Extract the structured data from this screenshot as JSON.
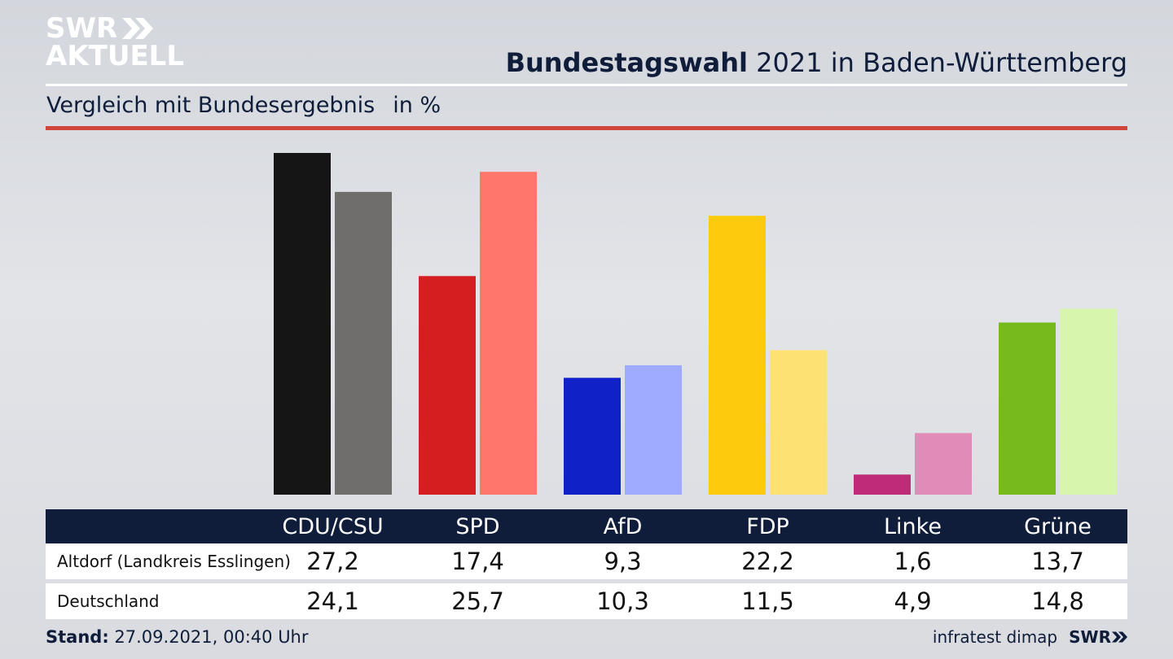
{
  "brand": {
    "logo_line1": "SWR",
    "logo_line2": "AKTUELL",
    "footer_logo": "SWR"
  },
  "header": {
    "title_bold": "Bundestagswahl",
    "title_rest": "2021 in Baden-Württemberg",
    "subtitle": "Vergleich mit Bundesergebnis",
    "unit": "in %"
  },
  "colors": {
    "accent_red": "#d0453a",
    "navy": "#0f1d3a",
    "CDU/CSU": [
      "#151515",
      "#706e6c"
    ],
    "SPD": [
      "#d51e20",
      "#ff766d"
    ],
    "AfD": [
      "#0f22c8",
      "#9eabff"
    ],
    "FDP": [
      "#fccc0c",
      "#fde273"
    ],
    "Linke": [
      "#be2c78",
      "#e08bb8"
    ],
    "Grüne": [
      "#76ba1e",
      "#d8f5ad"
    ]
  },
  "chart_data": {
    "type": "bar",
    "categories": [
      "CDU/CSU",
      "SPD",
      "AfD",
      "FDP",
      "Linke",
      "Grüne"
    ],
    "series": [
      {
        "name": "Altdorf (Landkreis Esslingen)",
        "values": [
          27.2,
          17.4,
          9.3,
          22.2,
          1.6,
          13.7
        ]
      },
      {
        "name": "Deutschland",
        "values": [
          24.1,
          25.7,
          10.3,
          11.5,
          4.9,
          14.8
        ]
      }
    ],
    "value_labels": [
      [
        "27,2",
        "17,4",
        "9,3",
        "22,2",
        "1,6",
        "13,7"
      ],
      [
        "24,1",
        "25,7",
        "10,3",
        "11,5",
        "4,9",
        "14,8"
      ]
    ],
    "ylim": [
      0,
      27.2
    ]
  },
  "footer": {
    "stand_label": "Stand:",
    "stand_value": "27.09.2021, 00:40 Uhr",
    "source": "infratest dimap"
  }
}
